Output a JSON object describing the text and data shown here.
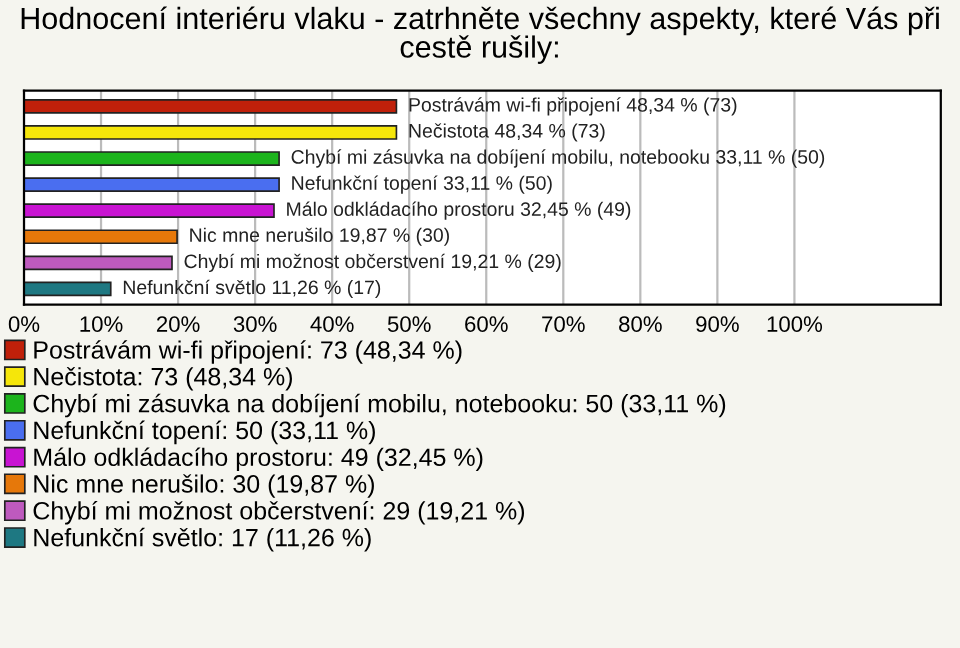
{
  "chart_data": {
    "type": "bar",
    "orientation": "horizontal",
    "title": "Hodnocení interiéru vlaku - zatrhněte všechny aspekty, které Vás při cestě rušily:",
    "categories": [
      null,
      null,
      null,
      null,
      null,
      null,
      null,
      null
    ],
    "series": [
      {
        "name": "Postrávám wi-fi připojení: 73 (48,34 %)",
        "color": "#c0200a",
        "values": [
          48.34,
          null,
          null,
          null,
          null,
          null,
          null,
          null
        ],
        "value_labels": [
          "Postrávám wi-fi připojení 48,34 % (73)",
          null,
          null,
          null,
          null,
          null,
          null,
          null
        ]
      },
      {
        "name": "Nečistota: 73 (48,34 %)",
        "color": "#f5e60a",
        "values": [
          null,
          48.34,
          null,
          null,
          null,
          null,
          null,
          null
        ],
        "value_labels": [
          null,
          "Nečistota 48,34 % (73)",
          null,
          null,
          null,
          null,
          null,
          null
        ]
      },
      {
        "name": "Chybí mi zásuvka na dobíjení mobilu, notebooku: 50 (33,11 %)",
        "color": "#1cb41c",
        "values": [
          null,
          null,
          33.11,
          null,
          null,
          null,
          null,
          null
        ],
        "value_labels": [
          null,
          null,
          "Chybí mi zásuvka na dobíjení mobilu, notebooku 33,11 % (50)",
          null,
          null,
          null,
          null,
          null
        ]
      },
      {
        "name": "Nefunkční topení: 50 (33,11 %)",
        "color": "#4a6ef0",
        "values": [
          null,
          null,
          null,
          33.11,
          null,
          null,
          null,
          null
        ],
        "value_labels": [
          null,
          null,
          null,
          "Nefunkční topení 33,11 % (50)",
          null,
          null,
          null,
          null
        ]
      },
      {
        "name": "Málo odkládacího prostoru: 49 (32,45 %)",
        "color": "#c814d2",
        "values": [
          null,
          null,
          null,
          null,
          32.45,
          null,
          null,
          null
        ],
        "value_labels": [
          null,
          null,
          null,
          null,
          "Málo odkládacího prostoru 32,45 % (49)",
          null,
          null,
          null
        ]
      },
      {
        "name": "Nic mne nerušilo: 30 (19,87 %)",
        "color": "#e6780a",
        "values": [
          null,
          null,
          null,
          null,
          null,
          19.87,
          null,
          null
        ],
        "value_labels": [
          null,
          null,
          null,
          null,
          null,
          "Nic mne nerušilo 19,87 % (30)",
          null,
          null
        ]
      },
      {
        "name": "Chybí mi možnost občerstvení: 29 (19,21 %)",
        "color": "#be5abe",
        "values": [
          null,
          null,
          null,
          null,
          null,
          null,
          19.21,
          null
        ],
        "value_labels": [
          null,
          null,
          null,
          null,
          null,
          null,
          "Chybí mi možnost občerstvení 19,21 % (29)",
          null
        ]
      },
      {
        "name": "Nefunkční světlo: 17 (11,26 %)",
        "color": "#1e7882",
        "values": [
          null,
          null,
          null,
          null,
          null,
          null,
          null,
          11.26
        ],
        "value_labels": [
          null,
          null,
          null,
          null,
          null,
          null,
          null,
          "Nefunkční světlo 11,26 % (17)"
        ]
      }
    ],
    "xlim": [
      0,
      119
    ],
    "xticks": [
      {
        "value": 0,
        "label": "0%"
      },
      {
        "value": 10,
        "label": "10%"
      },
      {
        "value": 20,
        "label": "20%"
      },
      {
        "value": 30,
        "label": "30%"
      },
      {
        "value": 40,
        "label": "40%"
      },
      {
        "value": 50,
        "label": "50%"
      },
      {
        "value": 60,
        "label": "60%"
      },
      {
        "value": 70,
        "label": "70%"
      },
      {
        "value": 80,
        "label": "80%"
      },
      {
        "value": 90,
        "label": "90%"
      },
      {
        "value": 100,
        "label": "100%"
      }
    ],
    "grid": "x",
    "legend": "bottom",
    "tick_labels": "x"
  }
}
